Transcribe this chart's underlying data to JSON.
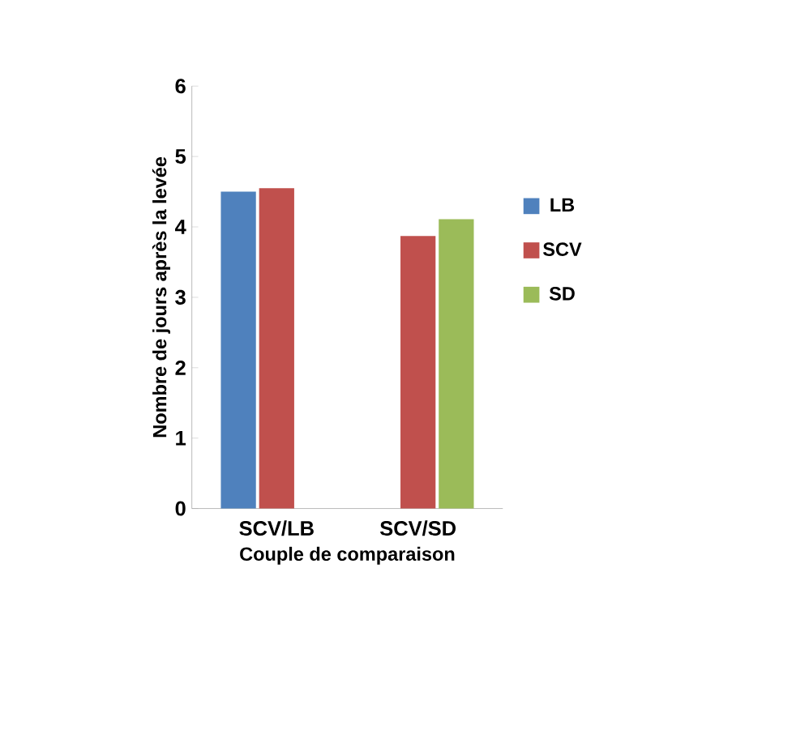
{
  "chart_data": {
    "type": "bar",
    "xlabel": "Couple de comparaison",
    "ylabel": "Nombre de jours après la levée",
    "categories": [
      "SCV/LB",
      "SCV/SD"
    ],
    "series": [
      {
        "name": "LB",
        "color": "#4f81bd",
        "values": [
          4.5,
          null
        ]
      },
      {
        "name": "SCV",
        "color": "#c0504d",
        "values": [
          4.55,
          3.87
        ]
      },
      {
        "name": "SD",
        "color": "#9bbb59",
        "values": [
          null,
          4.11
        ]
      }
    ],
    "ylim": [
      0,
      6
    ],
    "yticks": [
      0,
      1,
      2,
      3,
      4,
      5,
      6
    ],
    "grid": false,
    "legend": "right"
  }
}
